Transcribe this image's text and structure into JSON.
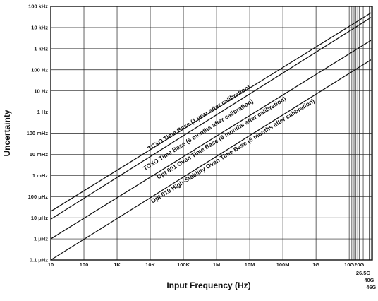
{
  "chart_data": {
    "type": "line",
    "title": "",
    "xlabel": "Input Frequency (Hz)",
    "ylabel": "Uncertainty",
    "x_scale": "log",
    "y_scale": "log",
    "xlim": [
      10,
      50000000000
    ],
    "ylim": [
      1e-07,
      100000
    ],
    "grid": true,
    "legend": "none",
    "x_ticks": [
      {
        "value": 10,
        "label": "10"
      },
      {
        "value": 100,
        "label": "100"
      },
      {
        "value": 1000,
        "label": "1K"
      },
      {
        "value": 10000,
        "label": "10K"
      },
      {
        "value": 100000,
        "label": "100K"
      },
      {
        "value": 1000000,
        "label": "1M"
      },
      {
        "value": 10000000,
        "label": "10M"
      },
      {
        "value": 100000000,
        "label": "100M"
      },
      {
        "value": 1000000000,
        "label": "1G"
      },
      {
        "value": 10000000000,
        "label": "10G"
      },
      {
        "value": 20000000000,
        "label": "20G"
      },
      {
        "value": 26500000000,
        "label": "26.5G"
      },
      {
        "value": 40000000000,
        "label": "40G"
      },
      {
        "value": 46000000000,
        "label": "46G"
      }
    ],
    "x_extra_gridlines": [
      12000000000,
      14000000000,
      16000000000,
      18000000000
    ],
    "y_ticks": [
      {
        "value": 100000,
        "label": "100 kHz"
      },
      {
        "value": 10000,
        "label": "10 kHz"
      },
      {
        "value": 1000,
        "label": "1 kHz"
      },
      {
        "value": 100,
        "label": "100 Hz"
      },
      {
        "value": 10,
        "label": "10 Hz"
      },
      {
        "value": 1,
        "label": "1 Hz"
      },
      {
        "value": 0.1,
        "label": "100 mHz"
      },
      {
        "value": 0.01,
        "label": "10 mHz"
      },
      {
        "value": 0.001,
        "label": "1 mHz"
      },
      {
        "value": 0.0001,
        "label": "100 μHz"
      },
      {
        "value": 1e-05,
        "label": "10 μHz"
      },
      {
        "value": 1e-06,
        "label": "1 μHz"
      },
      {
        "value": 1e-07,
        "label": "0.1 μHz"
      }
    ],
    "series": [
      {
        "name": "TCXO Time Base (1 year after calibration)",
        "x": [
          10,
          46000000000
        ],
        "y": [
          2e-05,
          50000
        ],
        "label_at": {
          "x": 316000,
          "y": 0.45
        }
      },
      {
        "name": "TCXO Time Base (6 months after calibration)",
        "x": [
          10,
          46000000000
        ],
        "y": [
          8.5e-06,
          30000
        ],
        "label_at": {
          "x": 300000,
          "y": 0.07
        }
      },
      {
        "name": "Opt 001 Oven Time Base (6 months after calibration)",
        "x": [
          10,
          46000000000
        ],
        "y": [
          1e-06,
          2500
        ],
        "label_at": {
          "x": 1500000,
          "y": 0.05
        }
      },
      {
        "name": "Opt 010 High-Stability Oven Time Base (6 months after calibration)",
        "x": [
          10,
          46000000000
        ],
        "y": [
          1e-07,
          300
        ],
        "label_at": {
          "x": 3300000,
          "y": 0.012
        }
      }
    ]
  }
}
